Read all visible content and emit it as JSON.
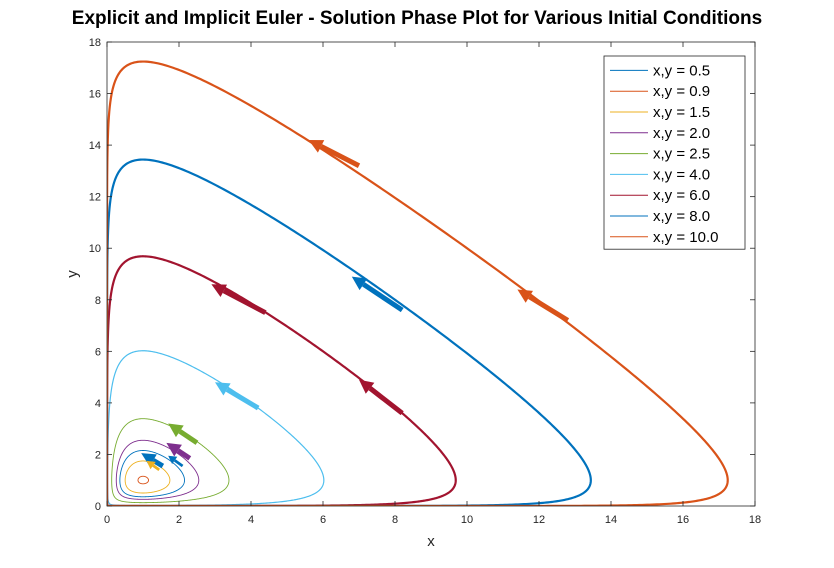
{
  "chart_data": {
    "type": "line",
    "title": "Explicit and Implicit Euler - Solution Phase Plot for Various Initial Conditions",
    "xlabel": "x",
    "ylabel": "y",
    "xlim": [
      0,
      18
    ],
    "ylim": [
      0,
      18
    ],
    "xticks": [
      "0",
      "2",
      "4",
      "6",
      "8",
      "10",
      "12",
      "14",
      "16",
      "18"
    ],
    "yticks": [
      "0",
      "2",
      "4",
      "6",
      "8",
      "10",
      "12",
      "14",
      "16",
      "18"
    ],
    "grid": false,
    "legend_position": "top-right",
    "series": [
      {
        "name": "x,y = 0.5",
        "ic": 0.5,
        "color": "#0072BD",
        "arrow_color": "#0072BD",
        "x_min": 0.5,
        "x_max": 1.75,
        "y_min": 0.5,
        "y_max": 2.1
      },
      {
        "name": "x,y = 0.9",
        "ic": 0.9,
        "color": "#D95319",
        "arrow_color": "#D95319",
        "x_min": 0.9,
        "x_max": 1.1,
        "y_min": 0.9,
        "y_max": 1.1
      },
      {
        "name": "x,y = 1.5",
        "ic": 1.5,
        "color": "#EDB120",
        "arrow_color": "#EDB120",
        "x_min": 0.55,
        "x_max": 1.6,
        "y_min": 0.55,
        "y_max": 1.6
      },
      {
        "name": "x,y = 2.0",
        "ic": 2.0,
        "color": "#7E2F8E",
        "arrow_color": "#7E2F8E",
        "x_min": 0.35,
        "x_max": 2.5,
        "y_min": 0.35,
        "y_max": 2.5
      },
      {
        "name": "x,y = 2.5",
        "ic": 2.5,
        "color": "#77AC30",
        "arrow_color": "#77AC30",
        "x_min": 0.25,
        "x_max": 3.4,
        "y_min": 0.25,
        "y_max": 3.4
      },
      {
        "name": "x,y = 4.0",
        "ic": 4.0,
        "color": "#4DBEEE",
        "arrow_color": "#4DBEEE",
        "x_min": 0.1,
        "x_max": 6.05,
        "y_min": 0.1,
        "y_max": 6.05
      },
      {
        "name": "x,y = 6.0",
        "ic": 6.0,
        "color": "#A2142F",
        "arrow_color": "#A2142F",
        "x_min": 0.03,
        "x_max": 9.7,
        "y_min": 0.03,
        "y_max": 9.7
      },
      {
        "name": "x,y = 8.0",
        "ic": 8.0,
        "color": "#0072BD",
        "arrow_color": "#0072BD",
        "x_min": 0.01,
        "x_max": 13.5,
        "y_min": 0.01,
        "y_max": 13.5
      },
      {
        "name": "x,y = 10.0",
        "ic": 10.0,
        "color": "#D95319",
        "arrow_color": "#D95319",
        "x_min": 0.01,
        "x_max": 17.3,
        "y_min": 0.01,
        "y_max": 17.3
      }
    ],
    "arrows": [
      {
        "series": "x,y = 10.0",
        "from": [
          7.0,
          13.2
        ],
        "to": [
          5.6,
          14.2
        ]
      },
      {
        "series": "x,y = 10.0",
        "from": [
          12.8,
          7.2
        ],
        "to": [
          11.4,
          8.4
        ]
      },
      {
        "series": "x,y = 8.0",
        "from": [
          8.2,
          7.6
        ],
        "to": [
          6.8,
          8.9
        ]
      },
      {
        "series": "x,y = 6.0",
        "from": [
          4.4,
          7.5
        ],
        "to": [
          2.9,
          8.6
        ]
      },
      {
        "series": "x,y = 6.0",
        "from": [
          8.2,
          3.6
        ],
        "to": [
          7.0,
          4.9
        ]
      },
      {
        "series": "x,y = 4.0",
        "from": [
          4.2,
          3.8
        ],
        "to": [
          3.0,
          4.8
        ]
      },
      {
        "series": "x,y = 2.5",
        "from": [
          2.5,
          2.45
        ],
        "to": [
          1.7,
          3.2
        ]
      },
      {
        "series": "x,y = 2.0",
        "from": [
          2.3,
          1.85
        ],
        "to": [
          1.65,
          2.45
        ]
      },
      {
        "series": "x,y = 0.5",
        "from": [
          1.55,
          1.55
        ],
        "to": [
          0.95,
          2.05
        ]
      },
      {
        "series": "x,y = 0.5",
        "from": [
          2.1,
          1.55
        ],
        "to": [
          1.7,
          1.95
        ]
      },
      {
        "series": "x,y = 1.5",
        "from": [
          1.45,
          1.4
        ],
        "to": [
          1.1,
          1.75
        ]
      }
    ]
  }
}
